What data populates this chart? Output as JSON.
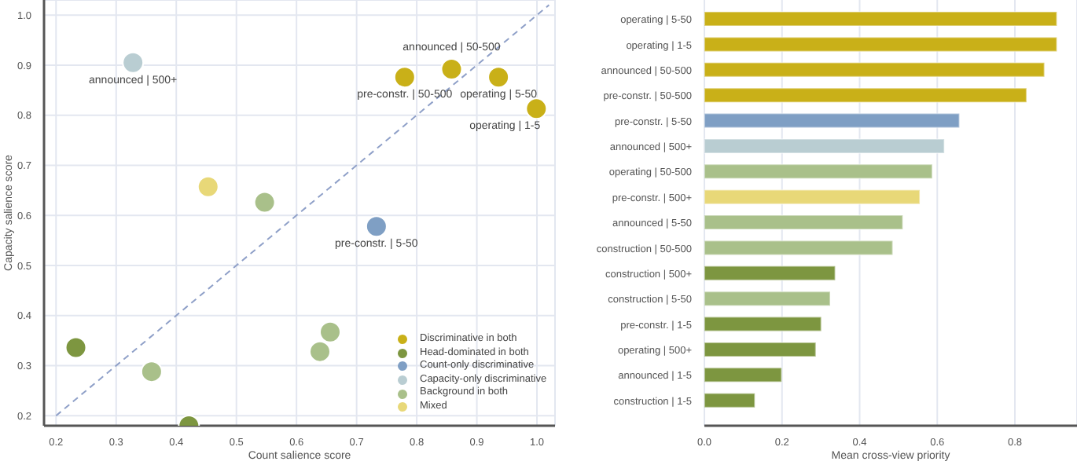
{
  "chart_data": [
    {
      "type": "scatter",
      "xlabel": "Count salience score",
      "ylabel": "Capacity salience score",
      "xlim": [
        0.18,
        1.03
      ],
      "ylim": [
        0.18,
        1.03
      ],
      "xticks": [
        0.2,
        0.3,
        0.4,
        0.5,
        0.6,
        0.7,
        0.8,
        0.9,
        {
          "value": 1,
          "label": "1.0"
        }
      ],
      "yticks": [
        0.2,
        0.3,
        0.4,
        0.5,
        0.6,
        0.7,
        0.8,
        0.9,
        {
          "value": 1,
          "label": "1.0"
        }
      ],
      "grid": true,
      "legend": "bottom right",
      "marker": "circle",
      "series": [
        {
          "name": "Discriminative in both",
          "color": "#c9b018",
          "x": [
            0.78,
            0.858,
            0.936,
            0.999
          ],
          "values": [
            0.876,
            0.892,
            0.876,
            0.813
          ]
        },
        {
          "name": "Head-dominated in both",
          "color": "#7d9640",
          "x": [
            0.233,
            0.421
          ],
          "values": [
            0.336,
            0.18
          ]
        },
        {
          "name": "Count-only discriminative",
          "color": "#7f9fc4",
          "x": [
            0.733
          ],
          "values": [
            0.578
          ]
        },
        {
          "name": "Capacity-only discriminative",
          "color": "#b9cdd2",
          "x": [
            0.328
          ],
          "values": [
            0.905
          ]
        },
        {
          "name": "Background in both",
          "color": "#a9c08a",
          "x": [
            0.547,
            0.359,
            0.656,
            0.639
          ],
          "values": [
            0.626,
            0.288,
            0.367,
            0.328
          ]
        },
        {
          "name": "Mixed",
          "color": "#e8d878",
          "x": [
            0.453
          ],
          "values": [
            0.657
          ]
        },
        {
          "type": "line",
          "color": "#8fa0c8",
          "line_style": "dashed",
          "marker": "none",
          "x": [
            0.2,
            1.02
          ],
          "values": [
            0.2,
            1.02
          ]
        }
      ],
      "annotations": [
        {
          "text": "announced | 500+",
          "x": 0.328,
          "y": 0.905
        },
        {
          "text": "announced | 50-500",
          "x": 0.858,
          "y": 0.892
        },
        {
          "text": "pre-constr. | 50-500",
          "x": 0.78,
          "y": 0.876
        },
        {
          "text": "operating | 5-50",
          "x": 0.936,
          "y": 0.876
        },
        {
          "text": "operating | 1-5",
          "x": 0.999,
          "y": 0.813
        },
        {
          "text": "pre-constr. | 5-50",
          "x": 0.733,
          "y": 0.578
        }
      ]
    },
    {
      "type": "bar",
      "orientation": "horizontal",
      "xlabel": "Mean cross-view priority",
      "xlim": [
        0,
        0.96
      ],
      "xticks": [
        {
          "value": 0,
          "label": "0.0"
        },
        0.2,
        0.4,
        0.6,
        0.8
      ],
      "grid": "x",
      "categories": [
        "operating | 5-50",
        "operating | 1-5",
        "announced | 50-500",
        "pre-constr. | 50-500",
        "pre-constr. | 5-50",
        "announced | 500+",
        "operating | 50-500",
        "pre-constr. | 500+",
        "announced | 5-50",
        "construction | 50-500",
        "construction | 500+",
        "construction | 5-50",
        "pre-constr. | 1-5",
        "operating | 500+",
        "announced | 1-5",
        "construction | 1-5"
      ],
      "values": [
        0.908,
        0.908,
        0.876,
        0.83,
        0.657,
        0.618,
        0.587,
        0.555,
        0.511,
        0.485,
        0.337,
        0.324,
        0.301,
        0.287,
        0.199,
        0.13
      ],
      "colors": [
        "#c9b018",
        "#c9b018",
        "#c9b018",
        "#c9b018",
        "#7f9fc4",
        "#b9cdd2",
        "#a9c08a",
        "#e8d878",
        "#a9c08a",
        "#a9c08a",
        "#7d9640",
        "#a9c08a",
        "#7d9640",
        "#7d9640",
        "#7d9640",
        "#7d9640"
      ]
    }
  ]
}
